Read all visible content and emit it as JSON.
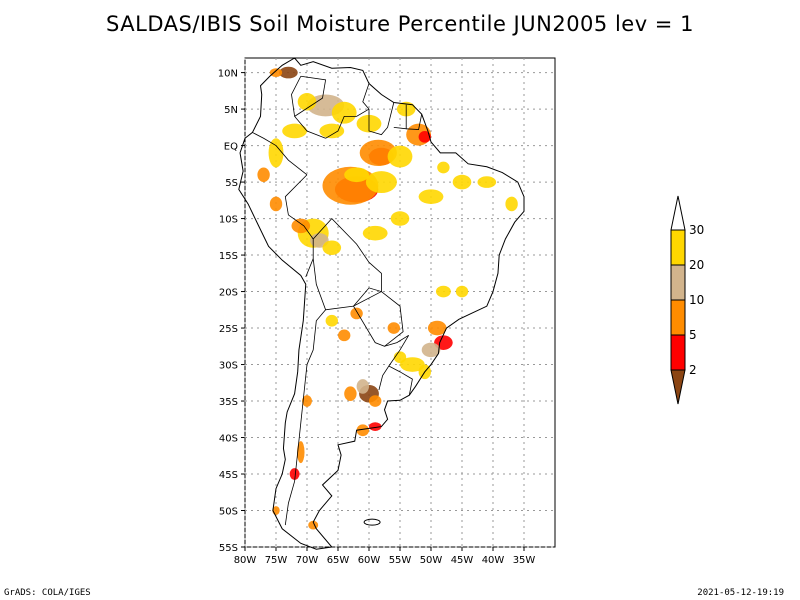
{
  "title": "SALDAS/IBIS Soil Moisture Percentile JUN2005 lev = 1",
  "map": {
    "lon_range": [
      -80,
      -30
    ],
    "lat_range": [
      -55,
      12
    ],
    "lat_ticks": [
      "10N",
      "5N",
      "EQ",
      "5S",
      "10S",
      "15S",
      "20S",
      "25S",
      "30S",
      "35S",
      "40S",
      "45S",
      "50S",
      "55S"
    ],
    "lon_ticks": [
      "80W",
      "75W",
      "70W",
      "65W",
      "60W",
      "55W",
      "50W",
      "45W",
      "40W",
      "35W"
    ],
    "gridlines": true
  },
  "colorbar": {
    "levels": [
      "2",
      "5",
      "10",
      "20",
      "30"
    ],
    "colors": [
      "#8b4513",
      "#ff0000",
      "#ff8c00",
      "#d2b48c",
      "#ffd700",
      "#ffffff"
    ],
    "orientation": "vertical"
  },
  "footer": {
    "left": "GrADS: COLA/IGES",
    "right": "2021-05-12-19:19"
  }
}
